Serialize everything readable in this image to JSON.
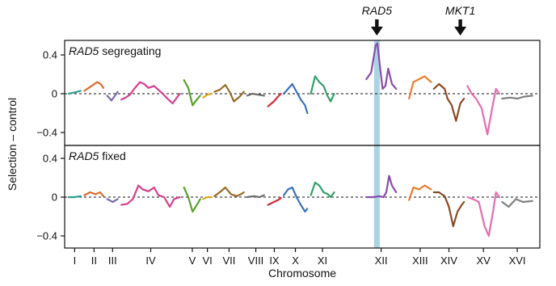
{
  "chart_data": {
    "type": "line",
    "ylabel": "Selection – control",
    "xlabel": "Chromosome",
    "xlim": [
      0,
      16.4
    ],
    "ylim": [
      -0.55,
      0.55
    ],
    "yticks": [
      -0.4,
      0,
      0.4
    ],
    "ytick_labels": [
      "−0.4",
      "0",
      "0.4"
    ],
    "grid": false,
    "zero_line": "dashed",
    "highlight": {
      "x_range": [
        10.72,
        10.92
      ],
      "color": "#a9d5e3"
    },
    "arrows": [
      {
        "label": "RAD5",
        "x": 10.82
      },
      {
        "label": "MKT1",
        "x": 13.75
      }
    ],
    "chromosomes": [
      {
        "label": "I",
        "start": 0.0,
        "end": 0.42,
        "center": 0.21,
        "color": "#2ea08c"
      },
      {
        "label": "II",
        "start": 0.55,
        "end": 1.22,
        "center": 0.89,
        "color": "#e06a2c"
      },
      {
        "label": "III",
        "start": 1.35,
        "end": 1.72,
        "center": 1.54,
        "color": "#7a6bb0"
      },
      {
        "label": "IV",
        "start": 1.85,
        "end": 3.9,
        "center": 2.88,
        "color": "#d63f8c"
      },
      {
        "label": "V",
        "start": 4.05,
        "end": 4.62,
        "center": 4.34,
        "color": "#5aa02c"
      },
      {
        "label": "VI",
        "start": 4.72,
        "end": 5.02,
        "center": 4.87,
        "color": "#e0a526"
      },
      {
        "label": "VII",
        "start": 5.12,
        "end": 6.15,
        "center": 5.63,
        "color": "#9a6a28"
      },
      {
        "label": "VIII",
        "start": 6.27,
        "end": 6.86,
        "center": 6.57,
        "color": "#6b6b6b"
      },
      {
        "label": "IX",
        "start": 7.0,
        "end": 7.45,
        "center": 7.22,
        "color": "#d62b3a"
      },
      {
        "label": "X",
        "start": 7.55,
        "end": 8.38,
        "center": 7.96,
        "color": "#3b72b8"
      },
      {
        "label": "XI",
        "start": 8.5,
        "end": 9.32,
        "center": 8.91,
        "color": "#33a068"
      },
      {
        "label": "XII",
        "start": 10.45,
        "end": 11.5,
        "center": 10.97,
        "color": "#8a4cab"
      },
      {
        "label": "XIII",
        "start": 11.95,
        "end": 12.72,
        "center": 12.34,
        "color": "#ee7b2c"
      },
      {
        "label": "XIV",
        "start": 12.82,
        "end": 13.88,
        "center": 13.35,
        "color": "#8a4a22"
      },
      {
        "label": "XV",
        "start": 14.0,
        "end": 15.12,
        "center": 14.56,
        "color": "#e56db1"
      },
      {
        "label": "XVI",
        "start": 15.22,
        "end": 16.28,
        "center": 15.75,
        "color": "#7f7f7f"
      }
    ],
    "panels": [
      {
        "label_italic": "RAD5",
        "label_rest": " segregating",
        "series": [
          {
            "chromosome": "I",
            "x": [
              0.0,
              0.15,
              0.3,
              0.42
            ],
            "y": [
              0.0,
              0.01,
              0.02,
              0.03
            ]
          },
          {
            "chromosome": "II",
            "x": [
              0.55,
              0.7,
              0.85,
              1.0,
              1.12,
              1.22
            ],
            "y": [
              0.03,
              0.06,
              0.09,
              0.12,
              0.1,
              0.06
            ]
          },
          {
            "chromosome": "III",
            "x": [
              1.35,
              1.5,
              1.6,
              1.72
            ],
            "y": [
              -0.02,
              -0.07,
              -0.03,
              0.02
            ]
          },
          {
            "chromosome": "IV",
            "x": [
              1.85,
              2.0,
              2.15,
              2.3,
              2.5,
              2.65,
              2.8,
              3.0,
              3.15,
              3.3,
              3.5,
              3.65,
              3.8,
              3.9
            ],
            "y": [
              -0.06,
              -0.04,
              -0.01,
              0.05,
              0.12,
              0.1,
              0.06,
              0.08,
              0.04,
              0.0,
              -0.06,
              -0.1,
              -0.04,
              0.0
            ]
          },
          {
            "chromosome": "V",
            "x": [
              4.05,
              4.2,
              4.35,
              4.5,
              4.62
            ],
            "y": [
              0.14,
              0.06,
              -0.12,
              -0.06,
              -0.02
            ]
          },
          {
            "chromosome": "VI",
            "x": [
              4.72,
              4.87,
              5.02
            ],
            "y": [
              -0.04,
              -0.01,
              0.0
            ]
          },
          {
            "chromosome": "VII",
            "x": [
              5.12,
              5.3,
              5.5,
              5.65,
              5.8,
              6.0,
              6.15
            ],
            "y": [
              0.02,
              0.04,
              0.09,
              0.02,
              -0.08,
              -0.03,
              0.02
            ]
          },
          {
            "chromosome": "VIII",
            "x": [
              6.27,
              6.45,
              6.65,
              6.86
            ],
            "y": [
              -0.02,
              0.0,
              -0.01,
              -0.02
            ]
          },
          {
            "chromosome": "IX",
            "x": [
              7.0,
              7.2,
              7.35,
              7.45
            ],
            "y": [
              -0.13,
              -0.08,
              -0.03,
              0.0
            ]
          },
          {
            "chromosome": "X",
            "x": [
              7.55,
              7.7,
              7.85,
              8.0,
              8.15,
              8.3,
              8.38
            ],
            "y": [
              0.0,
              0.05,
              0.1,
              0.02,
              -0.06,
              -0.12,
              -0.2
            ]
          },
          {
            "chromosome": "XI",
            "x": [
              8.5,
              8.65,
              8.8,
              8.95,
              9.1,
              9.2,
              9.32
            ],
            "y": [
              0.0,
              0.18,
              0.12,
              0.08,
              -0.03,
              -0.08,
              0.0
            ]
          },
          {
            "chromosome": "XII",
            "x": [
              10.45,
              10.62,
              10.78,
              10.84,
              10.92,
              11.02,
              11.12,
              11.22,
              11.35,
              11.5
            ],
            "y": [
              0.15,
              0.22,
              0.5,
              0.52,
              0.3,
              0.05,
              0.08,
              0.26,
              0.1,
              0.05
            ]
          },
          {
            "chromosome": "XIII",
            "x": [
              11.95,
              12.1,
              12.3,
              12.5,
              12.72
            ],
            "y": [
              -0.05,
              0.12,
              0.15,
              0.18,
              0.12
            ]
          },
          {
            "chromosome": "XIV",
            "x": [
              12.82,
              13.0,
              13.2,
              13.3,
              13.45,
              13.6,
              13.75,
              13.88
            ],
            "y": [
              0.05,
              0.1,
              0.05,
              -0.05,
              -0.12,
              -0.28,
              -0.1,
              -0.05
            ]
          },
          {
            "chromosome": "XV",
            "x": [
              14.0,
              14.15,
              14.3,
              14.5,
              14.7,
              14.9,
              15.0,
              15.12
            ],
            "y": [
              0.08,
              0.0,
              -0.05,
              -0.15,
              -0.42,
              -0.1,
              0.05,
              0.0
            ]
          },
          {
            "chromosome": "XVI",
            "x": [
              15.22,
              15.5,
              15.75,
              16.0,
              16.28
            ],
            "y": [
              -0.05,
              -0.04,
              -0.05,
              -0.03,
              -0.02
            ]
          }
        ]
      },
      {
        "label_italic": "RAD5",
        "label_rest": " fixed",
        "series": [
          {
            "chromosome": "I",
            "x": [
              0.0,
              0.2,
              0.42
            ],
            "y": [
              0.0,
              0.0,
              0.01
            ]
          },
          {
            "chromosome": "II",
            "x": [
              0.55,
              0.75,
              0.95,
              1.1,
              1.22
            ],
            "y": [
              0.02,
              0.05,
              0.03,
              0.05,
              0.01
            ]
          },
          {
            "chromosome": "III",
            "x": [
              1.35,
              1.55,
              1.72
            ],
            "y": [
              -0.02,
              -0.05,
              -0.02
            ]
          },
          {
            "chromosome": "IV",
            "x": [
              1.85,
              2.05,
              2.25,
              2.45,
              2.6,
              2.8,
              3.0,
              3.15,
              3.35,
              3.55,
              3.7,
              3.9
            ],
            "y": [
              -0.08,
              -0.07,
              -0.02,
              0.12,
              0.08,
              0.06,
              0.1,
              0.02,
              0.0,
              -0.1,
              -0.02,
              0.0
            ]
          },
          {
            "chromosome": "V",
            "x": [
              4.05,
              4.2,
              4.35,
              4.5,
              4.62
            ],
            "y": [
              0.1,
              0.0,
              -0.15,
              -0.08,
              -0.02
            ]
          },
          {
            "chromosome": "VI",
            "x": [
              4.72,
              4.87,
              5.02
            ],
            "y": [
              -0.02,
              0.0,
              0.0
            ]
          },
          {
            "chromosome": "VII",
            "x": [
              5.12,
              5.3,
              5.5,
              5.7,
              5.9,
              6.05,
              6.15
            ],
            "y": [
              0.01,
              0.05,
              0.1,
              0.03,
              0.01,
              0.03,
              0.05
            ]
          },
          {
            "chromosome": "VIII",
            "x": [
              6.27,
              6.5,
              6.7,
              6.86
            ],
            "y": [
              0.0,
              0.01,
              0.0,
              0.02
            ]
          },
          {
            "chromosome": "IX",
            "x": [
              7.0,
              7.2,
              7.35,
              7.45
            ],
            "y": [
              -0.08,
              -0.05,
              -0.03,
              -0.01
            ]
          },
          {
            "chromosome": "X",
            "x": [
              7.55,
              7.7,
              7.85,
              8.0,
              8.15,
              8.3,
              8.38
            ],
            "y": [
              0.02,
              0.08,
              0.1,
              0.0,
              -0.08,
              -0.15,
              -0.12
            ]
          },
          {
            "chromosome": "XI",
            "x": [
              8.5,
              8.65,
              8.8,
              8.95,
              9.1,
              9.2,
              9.32
            ],
            "y": [
              0.02,
              0.15,
              0.12,
              0.05,
              0.03,
              0.0,
              0.05
            ]
          },
          {
            "chromosome": "XII",
            "x": [
              10.45,
              10.7,
              10.9,
              11.05,
              11.15,
              11.25,
              11.35,
              11.5
            ],
            "y": [
              0.0,
              0.0,
              0.01,
              0.0,
              0.05,
              0.22,
              0.12,
              0.05
            ]
          },
          {
            "chromosome": "XIII",
            "x": [
              11.95,
              12.1,
              12.3,
              12.5,
              12.72
            ],
            "y": [
              -0.03,
              0.1,
              0.08,
              0.12,
              0.08
            ]
          },
          {
            "chromosome": "XIV",
            "x": [
              12.82,
              13.0,
              13.2,
              13.35,
              13.5,
              13.65,
              13.8,
              13.88
            ],
            "y": [
              0.05,
              0.05,
              0.01,
              -0.1,
              -0.3,
              -0.15,
              -0.08,
              -0.05
            ]
          },
          {
            "chromosome": "XV",
            "x": [
              14.0,
              14.2,
              14.4,
              14.6,
              14.75,
              14.9,
              15.0,
              15.12
            ],
            "y": [
              0.0,
              -0.02,
              -0.05,
              -0.3,
              -0.4,
              -0.15,
              0.05,
              0.0
            ]
          },
          {
            "chromosome": "XVI",
            "x": [
              15.22,
              15.45,
              15.7,
              15.95,
              16.28
            ],
            "y": [
              -0.05,
              -0.1,
              -0.02,
              -0.05,
              -0.04
            ]
          }
        ]
      }
    ]
  }
}
